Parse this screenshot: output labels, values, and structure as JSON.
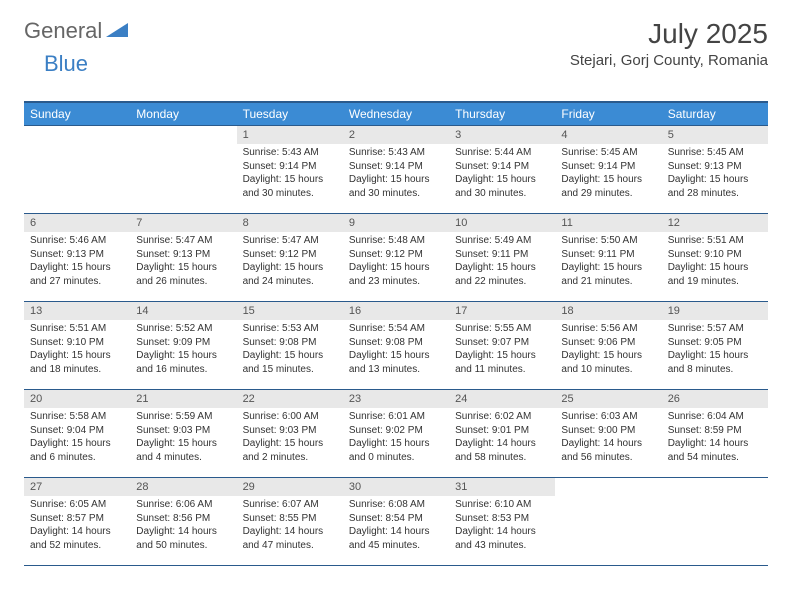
{
  "brand": {
    "part1": "General",
    "part2": "Blue"
  },
  "title": "July 2025",
  "location": "Stejari, Gorj County, Romania",
  "colors": {
    "header_bg": "#3b8bd4",
    "header_border": "#2a5a8c",
    "daynum_bg": "#e8e8e8",
    "text": "#333333",
    "brand_gray": "#666666",
    "brand_blue": "#3b7fc4"
  },
  "weekdays": [
    "Sunday",
    "Monday",
    "Tuesday",
    "Wednesday",
    "Thursday",
    "Friday",
    "Saturday"
  ],
  "weeks": [
    [
      null,
      null,
      {
        "n": "1",
        "sr": "5:43 AM",
        "ss": "9:14 PM",
        "dl": "15 hours and 30 minutes."
      },
      {
        "n": "2",
        "sr": "5:43 AM",
        "ss": "9:14 PM",
        "dl": "15 hours and 30 minutes."
      },
      {
        "n": "3",
        "sr": "5:44 AM",
        "ss": "9:14 PM",
        "dl": "15 hours and 30 minutes."
      },
      {
        "n": "4",
        "sr": "5:45 AM",
        "ss": "9:14 PM",
        "dl": "15 hours and 29 minutes."
      },
      {
        "n": "5",
        "sr": "5:45 AM",
        "ss": "9:13 PM",
        "dl": "15 hours and 28 minutes."
      }
    ],
    [
      {
        "n": "6",
        "sr": "5:46 AM",
        "ss": "9:13 PM",
        "dl": "15 hours and 27 minutes."
      },
      {
        "n": "7",
        "sr": "5:47 AM",
        "ss": "9:13 PM",
        "dl": "15 hours and 26 minutes."
      },
      {
        "n": "8",
        "sr": "5:47 AM",
        "ss": "9:12 PM",
        "dl": "15 hours and 24 minutes."
      },
      {
        "n": "9",
        "sr": "5:48 AM",
        "ss": "9:12 PM",
        "dl": "15 hours and 23 minutes."
      },
      {
        "n": "10",
        "sr": "5:49 AM",
        "ss": "9:11 PM",
        "dl": "15 hours and 22 minutes."
      },
      {
        "n": "11",
        "sr": "5:50 AM",
        "ss": "9:11 PM",
        "dl": "15 hours and 21 minutes."
      },
      {
        "n": "12",
        "sr": "5:51 AM",
        "ss": "9:10 PM",
        "dl": "15 hours and 19 minutes."
      }
    ],
    [
      {
        "n": "13",
        "sr": "5:51 AM",
        "ss": "9:10 PM",
        "dl": "15 hours and 18 minutes."
      },
      {
        "n": "14",
        "sr": "5:52 AM",
        "ss": "9:09 PM",
        "dl": "15 hours and 16 minutes."
      },
      {
        "n": "15",
        "sr": "5:53 AM",
        "ss": "9:08 PM",
        "dl": "15 hours and 15 minutes."
      },
      {
        "n": "16",
        "sr": "5:54 AM",
        "ss": "9:08 PM",
        "dl": "15 hours and 13 minutes."
      },
      {
        "n": "17",
        "sr": "5:55 AM",
        "ss": "9:07 PM",
        "dl": "15 hours and 11 minutes."
      },
      {
        "n": "18",
        "sr": "5:56 AM",
        "ss": "9:06 PM",
        "dl": "15 hours and 10 minutes."
      },
      {
        "n": "19",
        "sr": "5:57 AM",
        "ss": "9:05 PM",
        "dl": "15 hours and 8 minutes."
      }
    ],
    [
      {
        "n": "20",
        "sr": "5:58 AM",
        "ss": "9:04 PM",
        "dl": "15 hours and 6 minutes."
      },
      {
        "n": "21",
        "sr": "5:59 AM",
        "ss": "9:03 PM",
        "dl": "15 hours and 4 minutes."
      },
      {
        "n": "22",
        "sr": "6:00 AM",
        "ss": "9:03 PM",
        "dl": "15 hours and 2 minutes."
      },
      {
        "n": "23",
        "sr": "6:01 AM",
        "ss": "9:02 PM",
        "dl": "15 hours and 0 minutes."
      },
      {
        "n": "24",
        "sr": "6:02 AM",
        "ss": "9:01 PM",
        "dl": "14 hours and 58 minutes."
      },
      {
        "n": "25",
        "sr": "6:03 AM",
        "ss": "9:00 PM",
        "dl": "14 hours and 56 minutes."
      },
      {
        "n": "26",
        "sr": "6:04 AM",
        "ss": "8:59 PM",
        "dl": "14 hours and 54 minutes."
      }
    ],
    [
      {
        "n": "27",
        "sr": "6:05 AM",
        "ss": "8:57 PM",
        "dl": "14 hours and 52 minutes."
      },
      {
        "n": "28",
        "sr": "6:06 AM",
        "ss": "8:56 PM",
        "dl": "14 hours and 50 minutes."
      },
      {
        "n": "29",
        "sr": "6:07 AM",
        "ss": "8:55 PM",
        "dl": "14 hours and 47 minutes."
      },
      {
        "n": "30",
        "sr": "6:08 AM",
        "ss": "8:54 PM",
        "dl": "14 hours and 45 minutes."
      },
      {
        "n": "31",
        "sr": "6:10 AM",
        "ss": "8:53 PM",
        "dl": "14 hours and 43 minutes."
      },
      null,
      null
    ]
  ],
  "labels": {
    "sunrise": "Sunrise:",
    "sunset": "Sunset:",
    "daylight": "Daylight:"
  }
}
